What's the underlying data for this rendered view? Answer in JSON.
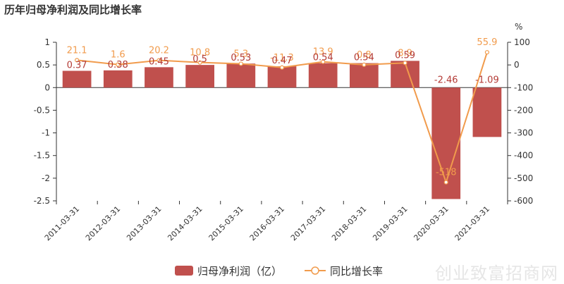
{
  "title": "历年归母净利润及同比增长率",
  "watermark": "创业致富招商网",
  "chart_data": {
    "type": "bar+line",
    "categories": [
      "2011-03-31",
      "2012-03-31",
      "2013-03-31",
      "2014-03-31",
      "2015-03-31",
      "2016-03-31",
      "2017-03-31",
      "2018-03-31",
      "2019-03-31",
      "2020-03-31",
      "2021-03-31"
    ],
    "series": [
      {
        "name": "归母净利润（亿）",
        "type": "bar",
        "axis": "left",
        "values": [
          0.37,
          0.38,
          0.45,
          0.5,
          0.53,
          0.47,
          0.54,
          0.54,
          0.59,
          -2.46,
          -1.09
        ],
        "labels": [
          "0.37",
          "0.38",
          "0.45",
          "0.5",
          "0.53",
          "0.47",
          "0.54",
          "0.54",
          "0.59",
          "-2.46",
          "-1.09"
        ],
        "color": "#c0504d"
      },
      {
        "name": "同比增长率",
        "type": "line",
        "axis": "right",
        "values": [
          21.1,
          1.6,
          20.2,
          10.8,
          5.3,
          -11.3,
          13.9,
          0.8,
          8.9,
          -518,
          55.9
        ],
        "labels": [
          "21.1",
          "1.6",
          "20.2",
          "10.8",
          "5.3",
          "-11.3",
          "13.9",
          "0.8",
          "8.9",
          "-518",
          "55.9"
        ],
        "color": "#f19b4c"
      }
    ],
    "left_axis": {
      "min": -2.5,
      "max": 1,
      "ticks": [
        1,
        0.5,
        0,
        -0.5,
        -1,
        -1.5,
        -2,
        -2.5
      ]
    },
    "right_axis": {
      "min": -600,
      "max": 100,
      "ticks": [
        100,
        0,
        -100,
        -200,
        -300,
        -400,
        -500,
        -600
      ],
      "unit": "%"
    },
    "legend_position": "bottom"
  }
}
